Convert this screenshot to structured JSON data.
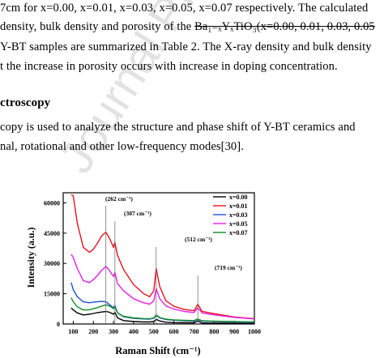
{
  "paragraph": {
    "line1": "7cm for x=0.00, x=0.01, x=0.03, x=0.05, x=0.07 respectively. The calculated",
    "line2_pre": "density, bulk density and porosity of the ",
    "line2_strike": "Ba₁₋ₓYₓTiO₃(x=0.00, 0.01, 0.03, 0.05",
    "line3": "Y-BT samples are summarized in Table 2. The X-ray density and bulk density",
    "line4": "t the increase in porosity occurs with increase in doping concentration."
  },
  "section": {
    "heading": "ctroscopy",
    "line1": "copy is used to analyze the structure and phase shift of Y-BT ceramics and",
    "line2": "nal, rotational and other low-frequency modes[30]."
  },
  "watermark": "Journal Pre-proof",
  "chart_data": {
    "type": "line",
    "xlabel": "Raman Shift (cm⁻¹)",
    "ylabel": "Intensity (a.u.)",
    "xlim": [
      50,
      1000
    ],
    "ylim": [
      0,
      65000
    ],
    "xticks": [
      100,
      200,
      300,
      400,
      500,
      600,
      700,
      800,
      900,
      1000
    ],
    "yticks": [
      0,
      15000,
      30000,
      45000,
      60000
    ],
    "x": [
      90,
      100,
      120,
      150,
      180,
      200,
      220,
      240,
      262,
      280,
      300,
      307,
      320,
      350,
      400,
      450,
      480,
      500,
      512,
      530,
      560,
      600,
      650,
      700,
      719,
      740,
      780,
      850,
      900,
      950,
      1000
    ],
    "series": [
      {
        "name": "x=0.00",
        "color": "#000000",
        "values": [
          8000,
          7000,
          5500,
          4500,
          4800,
          5200,
          5600,
          5900,
          6200,
          5800,
          4800,
          5800,
          3000,
          1700,
          1200,
          1000,
          1000,
          1200,
          2300,
          1500,
          900,
          700,
          600,
          600,
          1500,
          500,
          450,
          400,
          350,
          300,
          300
        ]
      },
      {
        "name": "x=0.01",
        "color": "#e8141e",
        "values": [
          64000,
          63500,
          50000,
          38000,
          35500,
          37000,
          40000,
          43500,
          45500,
          42500,
          38000,
          40500,
          34000,
          27000,
          19500,
          15000,
          13500,
          16500,
          27500,
          18500,
          11500,
          8800,
          7200,
          6600,
          9800,
          6300,
          5500,
          4300,
          3500,
          3000,
          2600
        ]
      },
      {
        "name": "x=0.03",
        "color": "#1e50d2",
        "values": [
          20500,
          17000,
          13500,
          11000,
          10500,
          10800,
          11000,
          11200,
          11000,
          9600,
          8000,
          9200,
          5500,
          3600,
          2800,
          2500,
          2400,
          2800,
          4200,
          3000,
          2200,
          1900,
          1600,
          1500,
          2200,
          1400,
          1300,
          1100,
          1000,
          900,
          900
        ]
      },
      {
        "name": "x=0.05",
        "color": "#e61ee6",
        "values": [
          34500,
          33000,
          27500,
          21500,
          20500,
          22000,
          24000,
          26500,
          28500,
          26500,
          23500,
          25500,
          20000,
          16500,
          12500,
          10500,
          9800,
          11500,
          17500,
          12500,
          9000,
          7400,
          6200,
          5700,
          8000,
          5500,
          4800,
          3900,
          3300,
          2900,
          2500
        ]
      },
      {
        "name": "x=0.07",
        "color": "#128c28",
        "values": [
          13000,
          11000,
          8500,
          7000,
          7000,
          7600,
          8100,
          8800,
          9500,
          8900,
          7600,
          8500,
          5500,
          3800,
          3000,
          2700,
          2600,
          3000,
          4500,
          3200,
          2400,
          2000,
          1800,
          1700,
          2500,
          1600,
          1500,
          1300,
          1200,
          1100,
          1100
        ]
      }
    ],
    "annotations": [
      {
        "text": "(262 cm⁻¹)",
        "x": 262
      },
      {
        "text": "(307 cm⁻¹)",
        "x": 307
      },
      {
        "text": "(512 cm⁻¹)",
        "x": 512
      },
      {
        "text": "(719 cm⁻¹)",
        "x": 719
      }
    ],
    "legend_position": "top-right",
    "grid": false
  }
}
